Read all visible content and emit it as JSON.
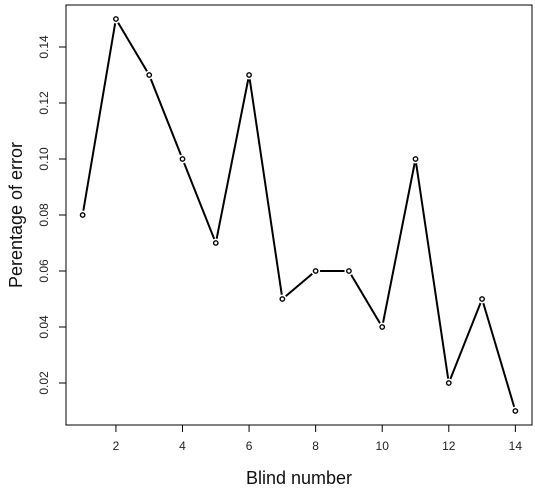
{
  "chart_data": {
    "type": "line",
    "title": "",
    "xlabel": "Blind number",
    "ylabel": "Perentage of error",
    "x": [
      1,
      2,
      3,
      4,
      5,
      6,
      7,
      8,
      9,
      10,
      11,
      12,
      13,
      14
    ],
    "series": [
      {
        "values": [
          0.08,
          0.15,
          0.13,
          0.1,
          0.07,
          0.13,
          0.05,
          0.06,
          0.06,
          0.04,
          0.1,
          0.02,
          0.05,
          0.01
        ]
      }
    ],
    "xlim": [
      0.5,
      14.5
    ],
    "ylim": [
      0.005,
      0.155
    ],
    "xticks": [
      "2",
      "4",
      "6",
      "8",
      "10",
      "12",
      "14"
    ],
    "yticks": [
      "0.02",
      "0.04",
      "0.06",
      "0.08",
      "0.10",
      "0.12",
      "0.14"
    ],
    "grid": false,
    "markers": "open-circle",
    "line_color": "#000000"
  }
}
